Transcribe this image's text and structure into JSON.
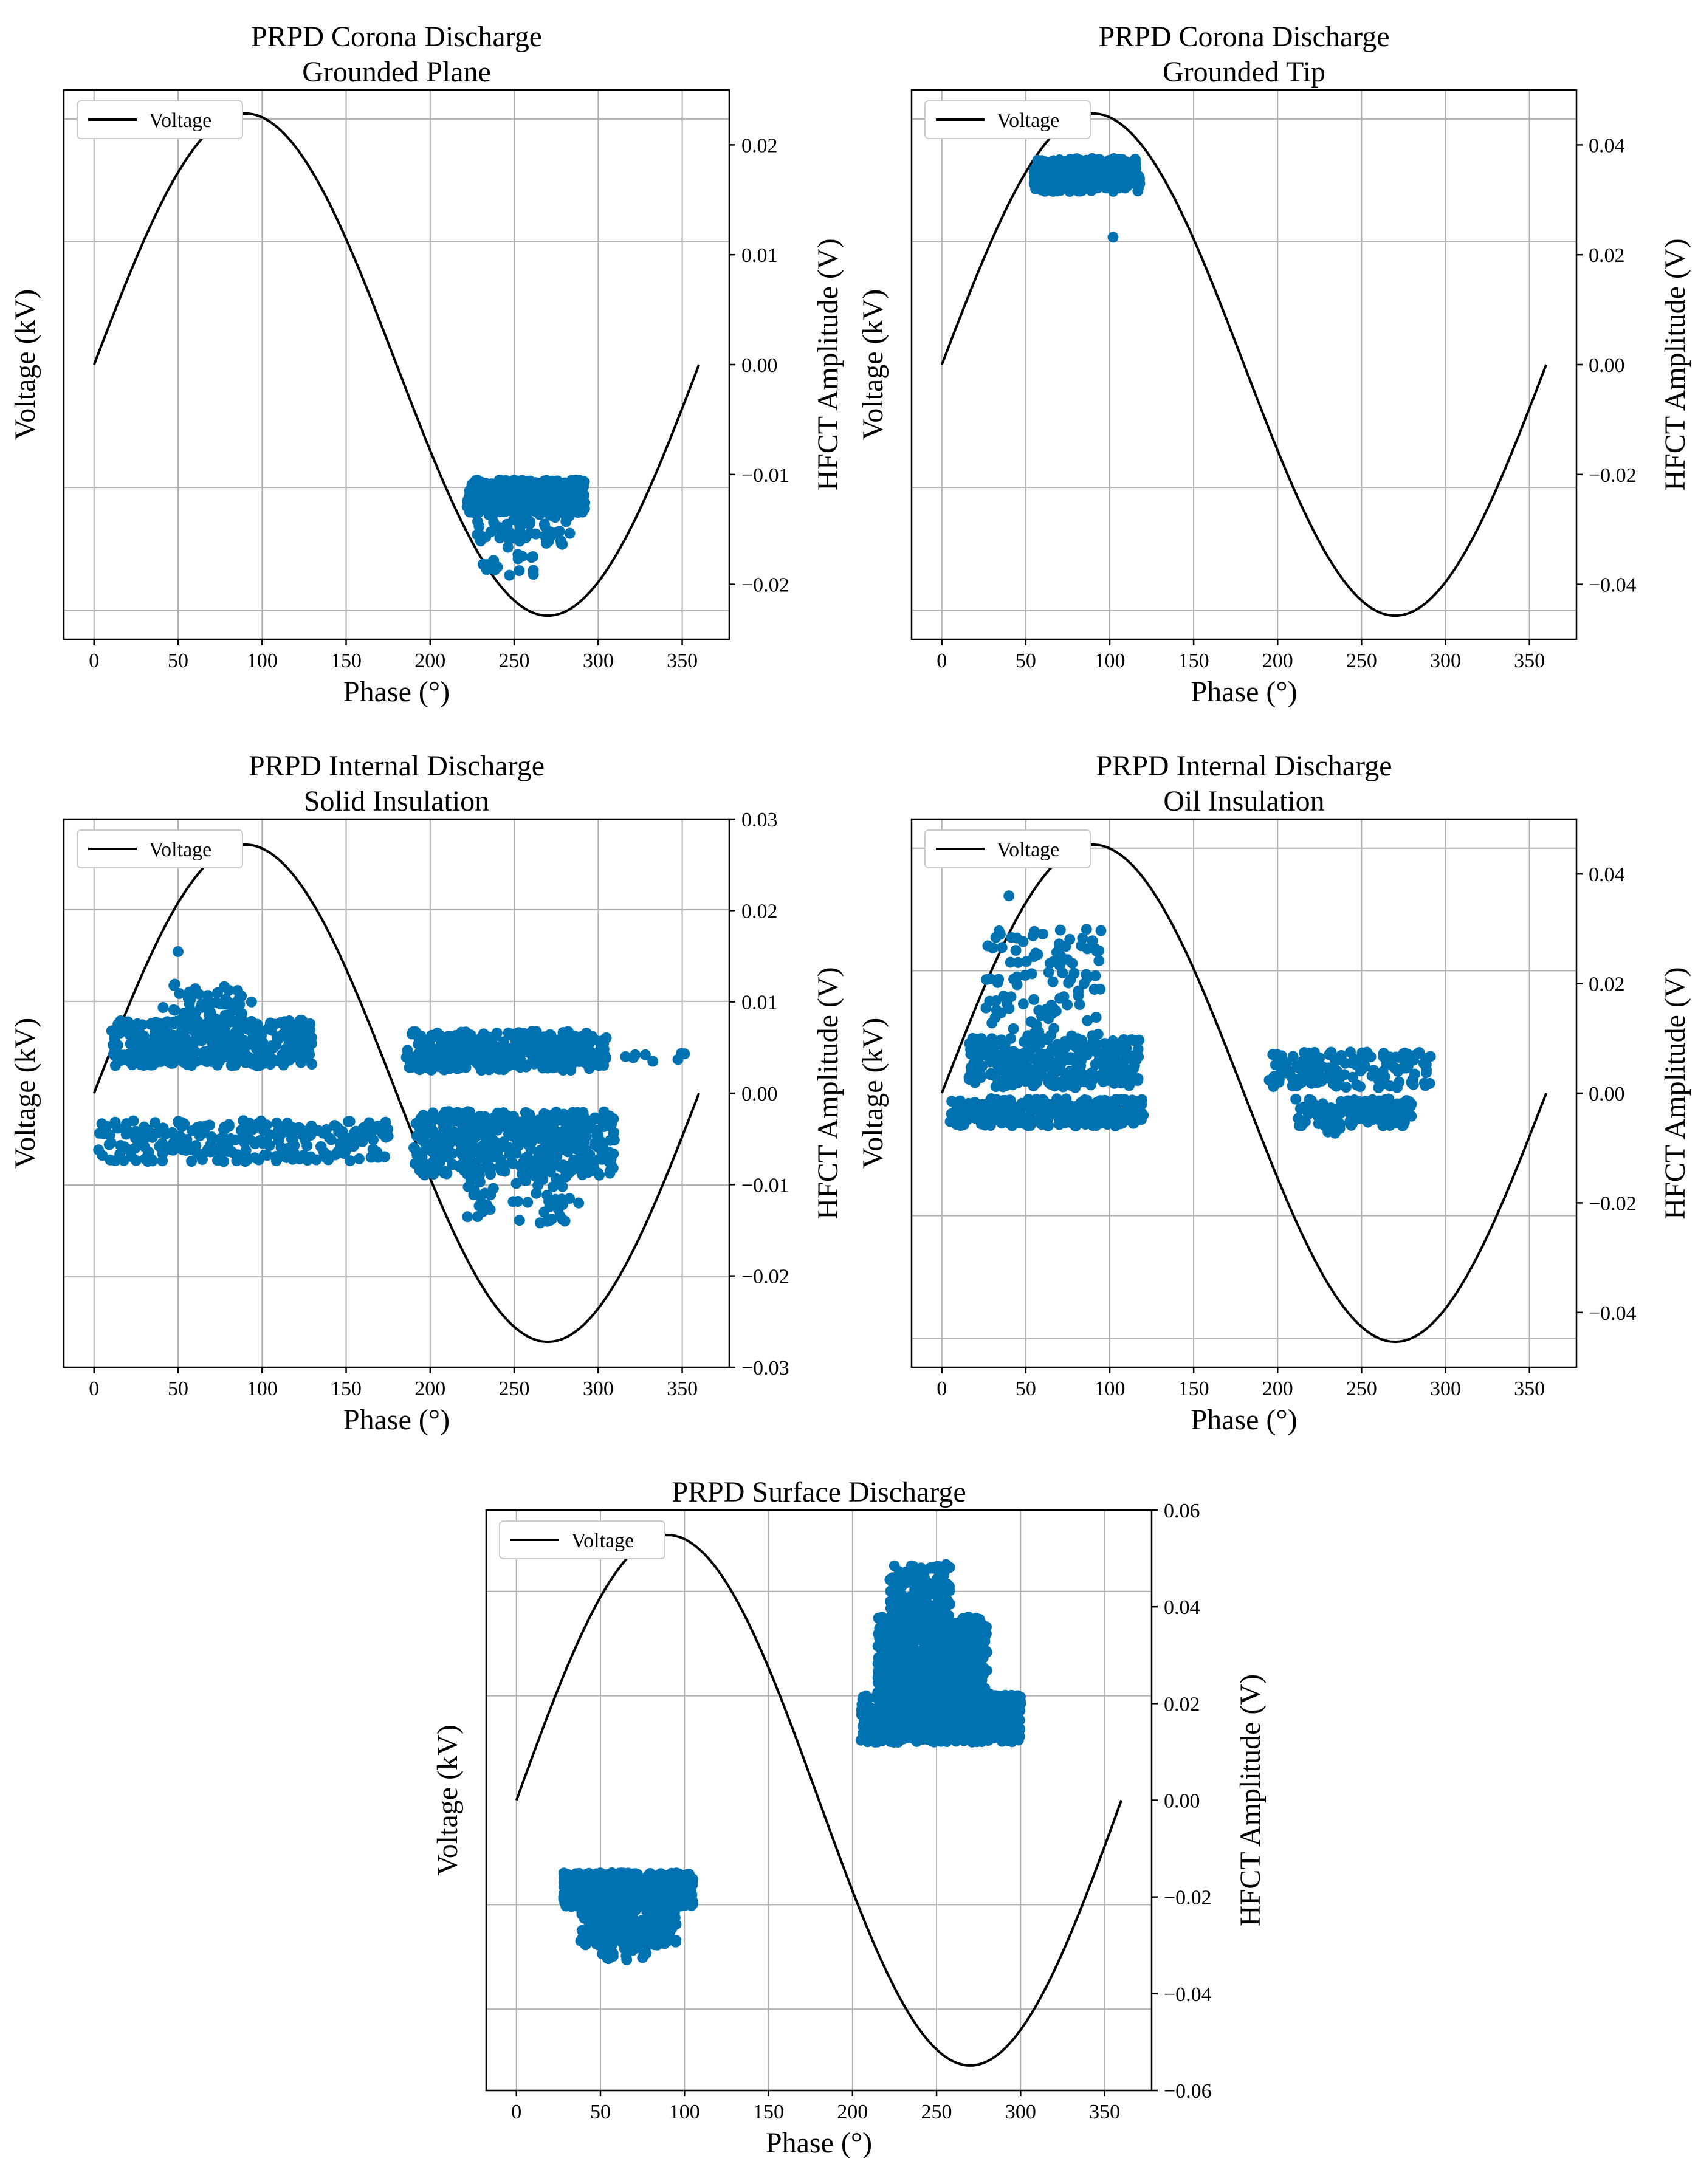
{
  "chart_data": [
    {
      "type": "scatter",
      "title": [
        "PRPD Corona Discharge",
        "Grounded Plane"
      ],
      "xlabel": "Phase (°)",
      "ylabel_left": "Voltage (kV)",
      "ylabel_right": "HFCT Amplitude (V)",
      "xlim": [
        -18,
        378
      ],
      "xticks": [
        0,
        50,
        100,
        150,
        200,
        250,
        300,
        350
      ],
      "xtick_labels": [
        "0",
        "50",
        "100",
        "150",
        "200",
        "250",
        "300",
        "350"
      ],
      "ylim_right": [
        -0.025,
        0.025
      ],
      "yticks_right": [
        0.02,
        0.01,
        0.0,
        -0.01,
        -0.02
      ],
      "ytick_labels_right": [
        "0.02",
        "0.01",
        "0.00",
        "−0.01",
        "−0.02"
      ],
      "left_grid_fractions": [
        -0.894,
        -0.447,
        0.447,
        0.894
      ],
      "legend": {
        "label": "Voltage",
        "position": "top-left"
      },
      "series": [
        {
          "name": "Voltage",
          "kind": "line",
          "color": "#000000",
          "amplitude_fraction": 0.914
        },
        {
          "name": "Discharges",
          "kind": "scatter",
          "color": "#0072B2",
          "clusters": [
            {
              "phase": [
                222,
                292
              ],
              "amp": [
                -0.0135,
                -0.0105
              ],
              "n": 480,
              "seed": 11
            },
            {
              "phase": [
                228,
                285
              ],
              "amp": [
                -0.0165,
                -0.0125
              ],
              "n": 70,
              "seed": 12
            },
            {
              "phase": [
                230,
                262
              ],
              "amp": [
                -0.0192,
                -0.0162
              ],
              "n": 16,
              "seed": 13
            }
          ]
        }
      ]
    },
    {
      "type": "scatter",
      "title": [
        "PRPD Corona Discharge",
        "Grounded Tip"
      ],
      "xlabel": "Phase (°)",
      "ylabel_left": "Voltage (kV)",
      "ylabel_right": "HFCT Amplitude (V)",
      "xlim": [
        -18,
        378
      ],
      "xticks": [
        0,
        50,
        100,
        150,
        200,
        250,
        300,
        350
      ],
      "xtick_labels": [
        "0",
        "50",
        "100",
        "150",
        "200",
        "250",
        "300",
        "350"
      ],
      "ylim_right": [
        -0.05,
        0.05
      ],
      "yticks_right": [
        0.04,
        0.02,
        0.0,
        -0.02,
        -0.04
      ],
      "ytick_labels_right": [
        "0.04",
        "0.02",
        "0.00",
        "−0.02",
        "−0.04"
      ],
      "left_grid_fractions": [
        -0.894,
        -0.447,
        0.447,
        0.894
      ],
      "legend": {
        "label": "Voltage",
        "position": "top-left"
      },
      "series": [
        {
          "name": "Voltage",
          "kind": "line",
          "color": "#000000",
          "amplitude_fraction": 0.914
        },
        {
          "name": "Discharges",
          "kind": "scatter",
          "color": "#0072B2",
          "clusters": [
            {
              "phase": [
                55,
                118
              ],
              "amp": [
                0.0315,
                0.0375
              ],
              "n": 320,
              "seed": 21
            },
            {
              "phase": [
                102,
                102
              ],
              "amp": [
                0.0232,
                0.0232
              ],
              "n": 1,
              "seed": 22
            }
          ]
        }
      ]
    },
    {
      "type": "scatter",
      "title": [
        "PRPD Internal Discharge",
        "Solid Insulation"
      ],
      "xlabel": "Phase (°)",
      "ylabel_left": "Voltage (kV)",
      "ylabel_right": "HFCT Amplitude (V)",
      "xlim": [
        -18,
        378
      ],
      "xticks": [
        0,
        50,
        100,
        150,
        200,
        250,
        300,
        350
      ],
      "xtick_labels": [
        "0",
        "50",
        "100",
        "150",
        "200",
        "250",
        "300",
        "350"
      ],
      "ylim_right": [
        -0.03,
        0.03
      ],
      "yticks_right": [
        0.03,
        0.02,
        0.01,
        0.0,
        -0.01,
        -0.02,
        -0.03
      ],
      "ytick_labels_right": [
        "0.03",
        "0.02",
        "0.01",
        "0.00",
        "−0.01",
        "−0.02",
        "−0.03"
      ],
      "left_grid_fractions": [
        -0.67,
        -0.335,
        0.335,
        0.67
      ],
      "legend": {
        "label": "Voltage",
        "position": "top-left"
      },
      "series": [
        {
          "name": "Voltage",
          "kind": "line",
          "color": "#000000",
          "amplitude_fraction": 0.907
        },
        {
          "name": "Discharges",
          "kind": "scatter",
          "color": "#0072B2",
          "clusters": [
            {
              "phase": [
                10,
                130
              ],
              "amp": [
                0.003,
                0.008
              ],
              "n": 380,
              "seed": 31
            },
            {
              "phase": [
                40,
                95
              ],
              "amp": [
                0.007,
                0.012
              ],
              "n": 60,
              "seed": 32
            },
            {
              "phase": [
                50,
                50
              ],
              "amp": [
                0.0155,
                0.0155
              ],
              "n": 1,
              "seed": 33
            },
            {
              "phase": [
                2,
                175
              ],
              "amp": [
                -0.0075,
                -0.003
              ],
              "n": 260,
              "seed": 34
            },
            {
              "phase": [
                185,
                305
              ],
              "amp": [
                0.0025,
                0.0068
              ],
              "n": 380,
              "seed": 35
            },
            {
              "phase": [
                310,
                358
              ],
              "amp": [
                0.0035,
                0.0048
              ],
              "n": 8,
              "seed": 36
            },
            {
              "phase": [
                190,
                310
              ],
              "amp": [
                -0.009,
                -0.002
              ],
              "n": 480,
              "seed": 37
            },
            {
              "phase": [
                220,
                290
              ],
              "amp": [
                -0.0142,
                -0.009
              ],
              "n": 50,
              "seed": 38
            }
          ]
        }
      ]
    },
    {
      "type": "scatter",
      "title": [
        "PRPD Internal Discharge",
        "Oil Insulation"
      ],
      "xlabel": "Phase (°)",
      "ylabel_left": "Voltage (kV)",
      "ylabel_right": "HFCT Amplitude (V)",
      "xlim": [
        -18,
        378
      ],
      "xticks": [
        0,
        50,
        100,
        150,
        200,
        250,
        300,
        350
      ],
      "xtick_labels": [
        "0",
        "50",
        "100",
        "150",
        "200",
        "250",
        "300",
        "350"
      ],
      "ylim_right": [
        -0.05,
        0.05
      ],
      "yticks_right": [
        0.04,
        0.02,
        0.0,
        -0.02,
        -0.04
      ],
      "ytick_labels_right": [
        "0.04",
        "0.02",
        "0.00",
        "−0.02",
        "−0.04"
      ],
      "left_grid_fractions": [
        -0.894,
        -0.447,
        0.447,
        0.894
      ],
      "legend": {
        "label": "Voltage",
        "position": "top-left"
      },
      "series": [
        {
          "name": "Voltage",
          "kind": "line",
          "color": "#000000",
          "amplitude_fraction": 0.907
        },
        {
          "name": "Discharges",
          "kind": "scatter",
          "color": "#0072B2",
          "clusters": [
            {
              "phase": [
                15,
                118
              ],
              "amp": [
                0.001,
                0.01
              ],
              "n": 280,
              "seed": 41
            },
            {
              "phase": [
                25,
                95
              ],
              "amp": [
                0.01,
                0.03
              ],
              "n": 110,
              "seed": 42
            },
            {
              "phase": [
                40,
                40
              ],
              "amp": [
                0.036,
                0.036
              ],
              "n": 1,
              "seed": 43
            },
            {
              "phase": [
                5,
                120
              ],
              "amp": [
                -0.006,
                -0.001
              ],
              "n": 300,
              "seed": 44
            },
            {
              "phase": [
                195,
                292
              ],
              "amp": [
                0.001,
                0.0075
              ],
              "n": 150,
              "seed": 45
            },
            {
              "phase": [
                210,
                280
              ],
              "amp": [
                -0.006,
                -0.001
              ],
              "n": 130,
              "seed": 46
            },
            {
              "phase": [
                230,
                240
              ],
              "amp": [
                -0.0078,
                -0.006
              ],
              "n": 5,
              "seed": 47
            }
          ]
        }
      ]
    },
    {
      "type": "scatter",
      "title": [
        "PRPD Surface Discharge"
      ],
      "xlabel": "Phase (°)",
      "ylabel_left": "Voltage (kV)",
      "ylabel_right": "HFCT Amplitude (V)",
      "xlim": [
        -18,
        378
      ],
      "xticks": [
        0,
        50,
        100,
        150,
        200,
        250,
        300,
        350
      ],
      "xtick_labels": [
        "0",
        "50",
        "100",
        "150",
        "200",
        "250",
        "300",
        "350"
      ],
      "ylim_right": [
        -0.06,
        0.06
      ],
      "yticks_right": [
        0.06,
        0.04,
        0.02,
        0.0,
        -0.02,
        -0.04,
        -0.06
      ],
      "ytick_labels_right": [
        "0.06",
        "0.04",
        "0.02",
        "0.00",
        "−0.02",
        "−0.04",
        "−0.06"
      ],
      "left_grid_fractions": [
        -0.72,
        -0.36,
        0.36,
        0.72
      ],
      "legend": {
        "label": "Voltage",
        "position": "top-left"
      },
      "series": [
        {
          "name": "Voltage",
          "kind": "line",
          "color": "#000000",
          "amplitude_fraction": 0.914
        },
        {
          "name": "Discharges",
          "kind": "scatter",
          "color": "#0072B2",
          "clusters": [
            {
              "phase": [
                205,
                300
              ],
              "amp": [
                0.012,
                0.022
              ],
              "n": 900,
              "seed": 51
            },
            {
              "phase": [
                215,
                280
              ],
              "amp": [
                0.02,
                0.038
              ],
              "n": 700,
              "seed": 52
            },
            {
              "phase": [
                222,
                258
              ],
              "amp": [
                0.036,
                0.049
              ],
              "n": 150,
              "seed": 53
            },
            {
              "phase": [
                28,
                105
              ],
              "amp": [
                -0.022,
                -0.015
              ],
              "n": 700,
              "seed": 54
            },
            {
              "phase": [
                38,
                95
              ],
              "amp": [
                -0.03,
                -0.022
              ],
              "n": 260,
              "seed": 55
            },
            {
              "phase": [
                48,
                78
              ],
              "amp": [
                -0.033,
                -0.029
              ],
              "n": 25,
              "seed": 56
            }
          ]
        }
      ]
    }
  ]
}
